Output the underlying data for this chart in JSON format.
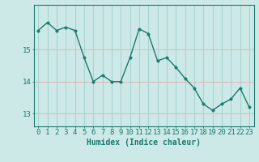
{
  "x": [
    0,
    1,
    2,
    3,
    4,
    5,
    6,
    7,
    8,
    9,
    10,
    11,
    12,
    13,
    14,
    15,
    16,
    17,
    18,
    19,
    20,
    21,
    22,
    23
  ],
  "y": [
    15.6,
    15.85,
    15.6,
    15.7,
    15.6,
    14.75,
    14.0,
    14.2,
    14.0,
    14.0,
    14.75,
    15.65,
    15.5,
    14.65,
    14.75,
    14.45,
    14.1,
    13.8,
    13.3,
    13.1,
    13.3,
    13.45,
    13.8,
    13.2
  ],
  "line_color": "#1a7a6e",
  "marker_color": "#1a7a6e",
  "bg_color": "#cce9e7",
  "hgrid_color": "#e8b8b8",
  "vgrid_color": "#a8d4d2",
  "axis_color": "#1a7a6e",
  "xlabel": "Humidex (Indice chaleur)",
  "yticks": [
    13,
    14,
    15
  ],
  "ylim": [
    12.6,
    16.4
  ],
  "xlim": [
    -0.5,
    23.5
  ],
  "xlabel_fontsize": 7.0,
  "tick_fontsize": 6.5,
  "line_width": 1.0,
  "marker_size": 2.5
}
